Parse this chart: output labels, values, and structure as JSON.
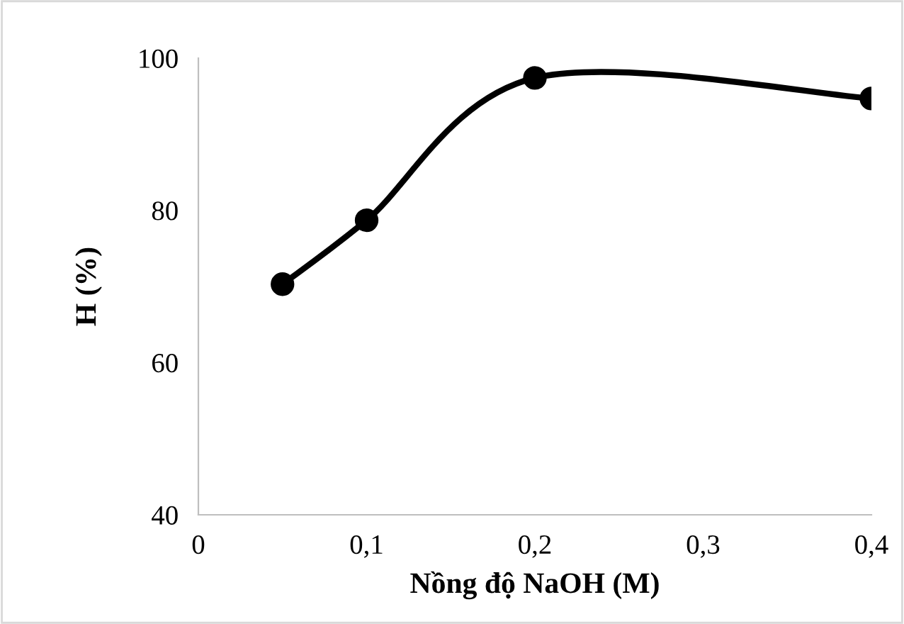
{
  "chart_data": {
    "type": "line",
    "xlabel": "Nồng độ NaOH (M)",
    "ylabel": "H (%)",
    "x": [
      0.05,
      0.1,
      0.2,
      0.4
    ],
    "series": [
      {
        "color": "#000000",
        "values": [
          70.3,
          78.7,
          97.4,
          94.7
        ]
      }
    ],
    "marker": "circle",
    "line_style": "solid",
    "grid": false,
    "legend": false,
    "xlim": [
      0,
      0.4
    ],
    "xticks": [
      {
        "value": 0,
        "label": "0"
      },
      {
        "value": 0.1,
        "label": "0,1"
      },
      {
        "value": 0.2,
        "label": "0,2"
      },
      {
        "value": 0.3,
        "label": "0,3"
      },
      {
        "value": 0.4,
        "label": "0,4"
      }
    ],
    "ylim": [
      40,
      100
    ],
    "yticks": [
      40,
      60,
      80,
      100
    ]
  }
}
